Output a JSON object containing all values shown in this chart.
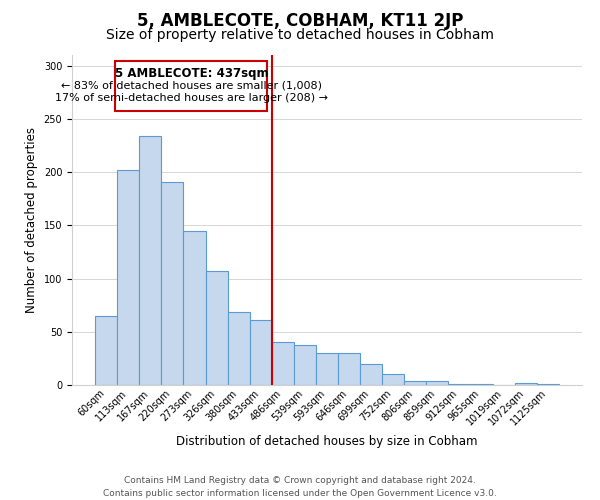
{
  "title": "5, AMBLECOTE, COBHAM, KT11 2JP",
  "subtitle": "Size of property relative to detached houses in Cobham",
  "xlabel": "Distribution of detached houses by size in Cobham",
  "ylabel": "Number of detached properties",
  "categories": [
    "60sqm",
    "113sqm",
    "167sqm",
    "220sqm",
    "273sqm",
    "326sqm",
    "380sqm",
    "433sqm",
    "486sqm",
    "539sqm",
    "593sqm",
    "646sqm",
    "699sqm",
    "752sqm",
    "806sqm",
    "859sqm",
    "912sqm",
    "965sqm",
    "1019sqm",
    "1072sqm",
    "1125sqm"
  ],
  "values": [
    65,
    202,
    234,
    191,
    145,
    107,
    69,
    61,
    40,
    38,
    30,
    30,
    20,
    10,
    4,
    4,
    1,
    1,
    0,
    2,
    1
  ],
  "bar_color": "#c5d8ed",
  "bar_edge_color": "#5b9bd5",
  "vline_x": 7.5,
  "vline_color": "#cc0000",
  "annotation_title": "5 AMBLECOTE: 437sqm",
  "annotation_line1": "← 83% of detached houses are smaller (1,008)",
  "annotation_line2": "17% of semi-detached houses are larger (208) →",
  "annotation_box_edge": "#cc0000",
  "ylim": [
    0,
    310
  ],
  "footer_line1": "Contains HM Land Registry data © Crown copyright and database right 2024.",
  "footer_line2": "Contains public sector information licensed under the Open Government Licence v3.0.",
  "background_color": "#ffffff",
  "grid_color": "#d0d0d0",
  "title_fontsize": 12,
  "subtitle_fontsize": 10,
  "axis_label_fontsize": 8.5,
  "tick_fontsize": 7,
  "footer_fontsize": 6.5
}
